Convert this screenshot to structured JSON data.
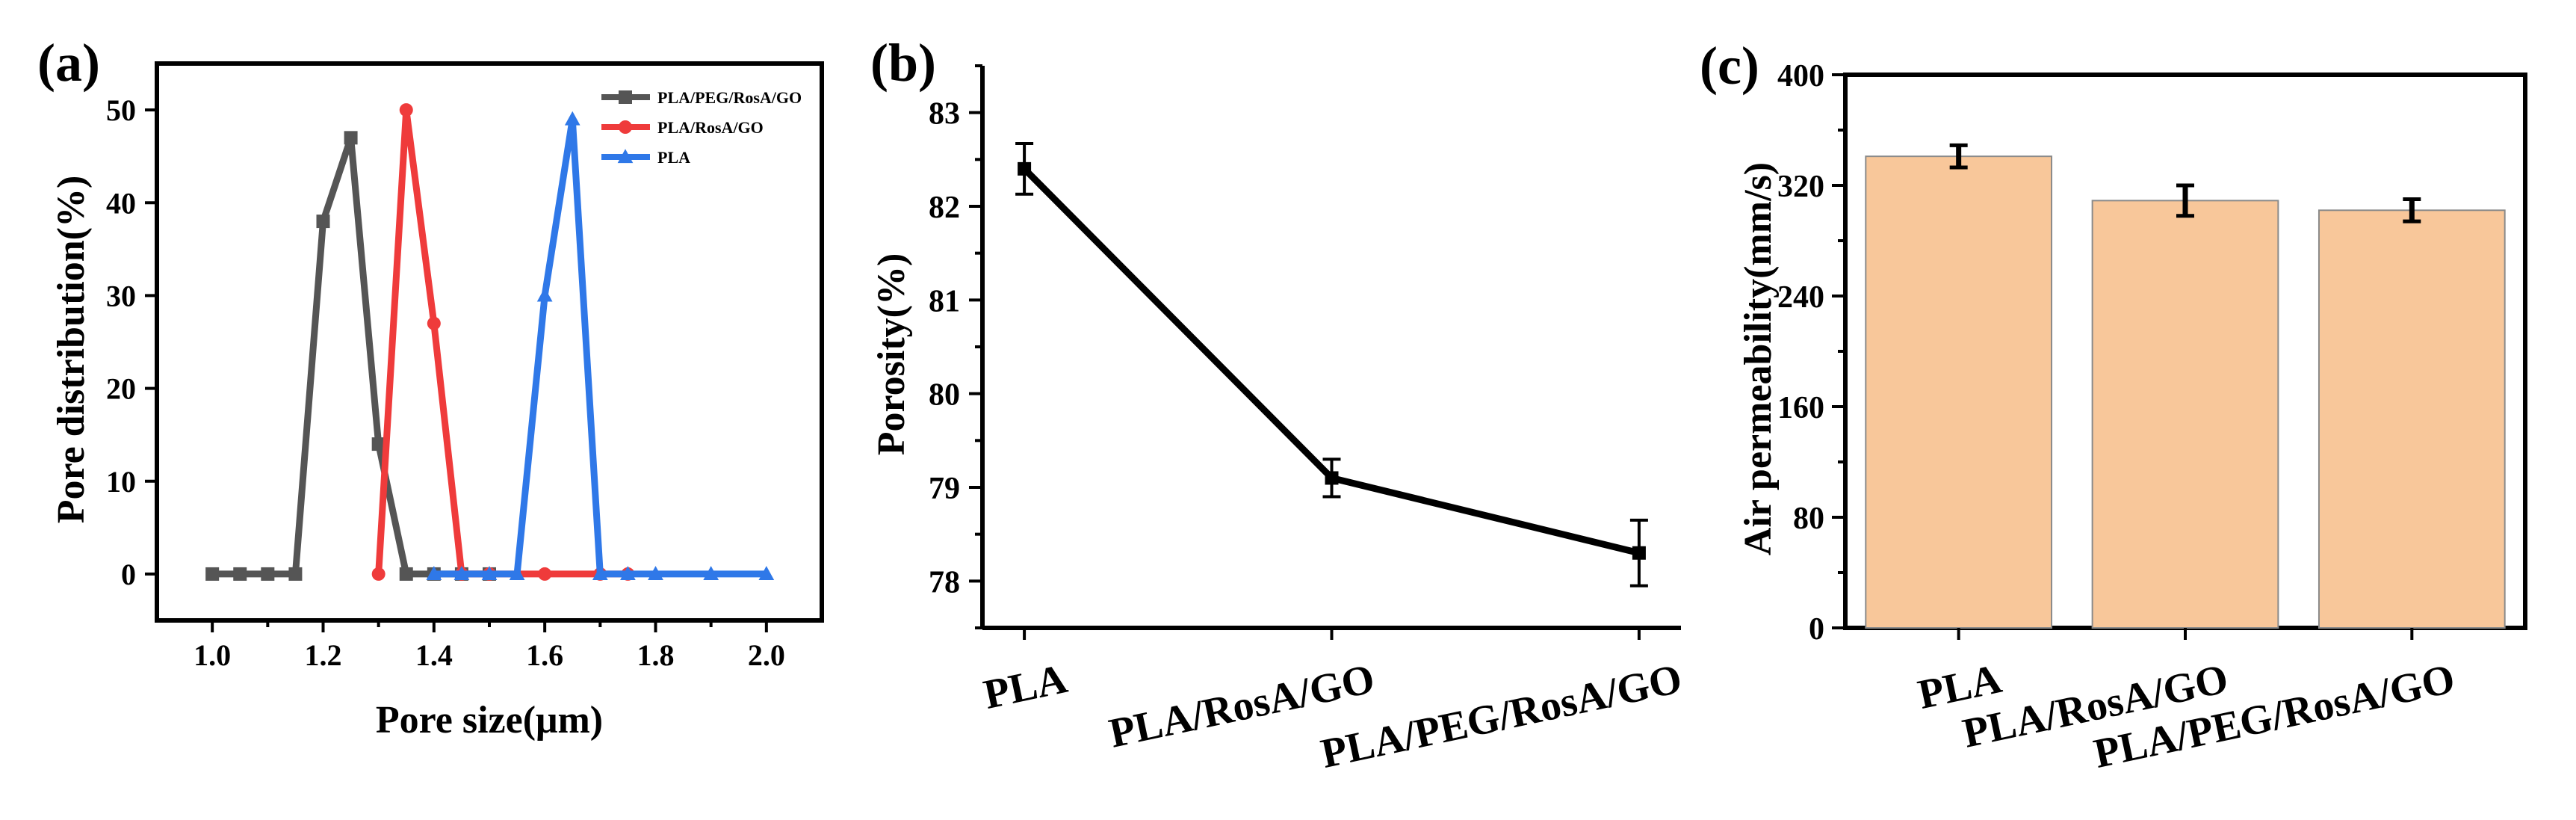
{
  "colors": {
    "series_dark": "#555555",
    "series_red": "#ef3b3b",
    "series_blue": "#2f78e8",
    "bar_fill": "#f8c79a",
    "bar_stroke": "#8a8a8a"
  },
  "chart_data": [
    {
      "panel": "(a)",
      "type": "line",
      "xlabel": "Pore size(μm)",
      "ylabel": "Pore distribution(%)",
      "xlim": [
        0.9,
        2.1
      ],
      "ylim": [
        -5,
        55
      ],
      "xticks": [
        "1.0",
        "1.2",
        "1.4",
        "1.6",
        "1.8",
        "2.0"
      ],
      "yticks": [
        "0",
        "10",
        "20",
        "30",
        "40",
        "50"
      ],
      "legend_position": "top-right",
      "series": [
        {
          "name": "PLA/PEG/RosA/GO",
          "marker": "square",
          "x": [
            1.0,
            1.05,
            1.1,
            1.15,
            1.2,
            1.25,
            1.3,
            1.35,
            1.4,
            1.45,
            1.5
          ],
          "y": [
            0,
            0,
            0,
            0,
            38,
            47,
            14,
            0,
            0,
            0,
            0
          ]
        },
        {
          "name": "PLA/RosA/GO",
          "marker": "circle",
          "x": [
            1.3,
            1.35,
            1.4,
            1.45,
            1.5,
            1.6,
            1.7,
            1.75
          ],
          "y": [
            0,
            50,
            27,
            0,
            0,
            0,
            0,
            0
          ]
        },
        {
          "name": "PLA",
          "marker": "triangle",
          "x": [
            1.4,
            1.45,
            1.5,
            1.55,
            1.6,
            1.65,
            1.7,
            1.75,
            1.8,
            1.9,
            2.0
          ],
          "y": [
            0,
            0,
            0,
            0,
            30,
            49,
            0,
            0,
            0,
            0,
            0
          ]
        }
      ]
    },
    {
      "panel": "(b)",
      "type": "line",
      "xlabel": "",
      "ylabel": "Porosity(%)",
      "ylim": [
        77.5,
        83.5
      ],
      "yticks": [
        "78",
        "79",
        "80",
        "81",
        "82",
        "83"
      ],
      "categories": [
        "PLA",
        "PLA/RosA/GO",
        "PLA/PEG/RosA/GO"
      ],
      "values": [
        82.4,
        79.1,
        78.3
      ],
      "errors": [
        0.27,
        0.2,
        0.35
      ]
    },
    {
      "panel": "(c)",
      "type": "bar",
      "xlabel": "",
      "ylabel": "Air permeability(mm/s)",
      "ylim": [
        0,
        400
      ],
      "yticks": [
        "0",
        "80",
        "160",
        "240",
        "320",
        "400"
      ],
      "categories": [
        "PLA",
        "PLA/RosA/GO",
        "PLA/PEG/RosA/GO"
      ],
      "values": [
        341,
        309,
        302
      ],
      "errors": [
        8,
        11,
        8
      ]
    }
  ]
}
